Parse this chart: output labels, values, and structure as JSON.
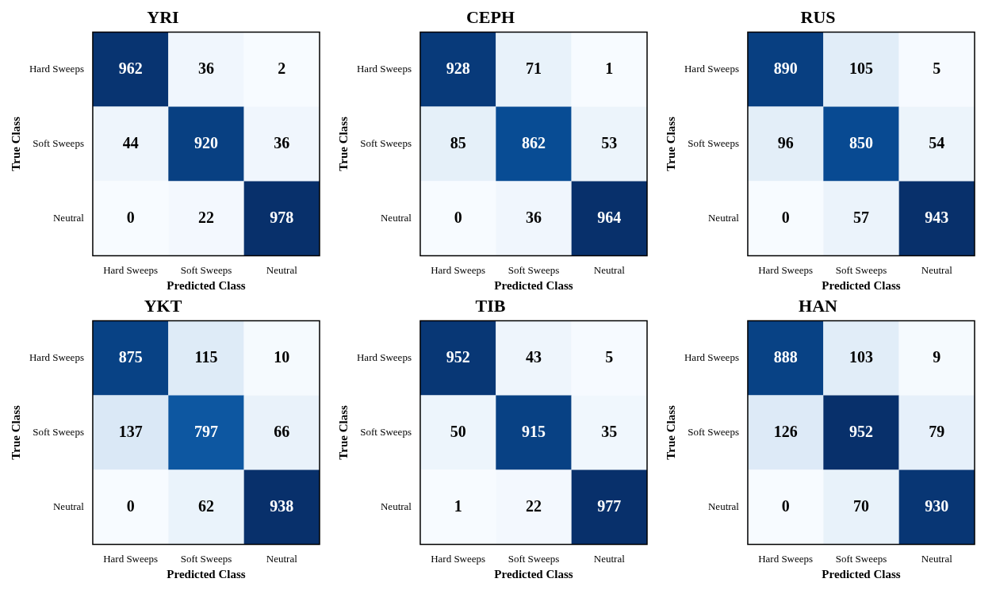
{
  "chart_data": [
    {
      "type": "heatmap",
      "title": "YRI",
      "xlabel": "Predicted Class",
      "ylabel": "True Class",
      "categories": [
        "Hard Sweeps",
        "Soft Sweeps",
        "Neutral"
      ],
      "y_categories": [
        "Hard Sweeps",
        "Soft Sweeps",
        "Neutral"
      ],
      "cells": [
        [
          962,
          36,
          2
        ],
        [
          44,
          920,
          36
        ],
        [
          0,
          22,
          978
        ]
      ],
      "data_labels": true
    },
    {
      "type": "heatmap",
      "title": "CEPH",
      "xlabel": "Predicted Class",
      "ylabel": "True Class",
      "categories": [
        "Hard Sweeps",
        "Soft Sweeps",
        "Neutral"
      ],
      "y_categories": [
        "Hard Sweeps",
        "Soft Sweeps",
        "Neutral"
      ],
      "cells": [
        [
          928,
          71,
          1
        ],
        [
          85,
          862,
          53
        ],
        [
          0,
          36,
          964
        ]
      ],
      "data_labels": true
    },
    {
      "type": "heatmap",
      "title": "RUS",
      "xlabel": "Predicted Class",
      "ylabel": "True Class",
      "categories": [
        "Hard Sweeps",
        "Soft Sweeps",
        "Neutral"
      ],
      "y_categories": [
        "Hard Sweeps",
        "Soft Sweeps",
        "Neutral"
      ],
      "cells": [
        [
          890,
          105,
          5
        ],
        [
          96,
          850,
          54
        ],
        [
          0,
          57,
          943
        ]
      ],
      "data_labels": true
    },
    {
      "type": "heatmap",
      "title": "YKT",
      "xlabel": "Predicted Class",
      "ylabel": "True Class",
      "categories": [
        "Hard Sweeps",
        "Soft Sweeps",
        "Neutral"
      ],
      "y_categories": [
        "Hard Sweeps",
        "Soft Sweeps",
        "Neutral"
      ],
      "cells": [
        [
          875,
          115,
          10
        ],
        [
          137,
          797,
          66
        ],
        [
          0,
          62,
          938
        ]
      ],
      "data_labels": true
    },
    {
      "type": "heatmap",
      "title": "TIB",
      "xlabel": "Predicted Class",
      "ylabel": "True Class",
      "categories": [
        "Hard Sweeps",
        "Soft Sweeps",
        "Neutral"
      ],
      "y_categories": [
        "Hard Sweeps",
        "Soft Sweeps",
        "Neutral"
      ],
      "cells": [
        [
          952,
          43,
          5
        ],
        [
          50,
          915,
          35
        ],
        [
          1,
          22,
          977
        ]
      ],
      "data_labels": true
    },
    {
      "type": "heatmap",
      "title": "HAN",
      "xlabel": "Predicted Class",
      "ylabel": "True Class",
      "categories": [
        "Hard Sweeps",
        "Soft Sweeps",
        "Neutral"
      ],
      "y_categories": [
        "Hard Sweeps",
        "Soft Sweeps",
        "Neutral"
      ],
      "cells": [
        [
          888,
          103,
          9
        ],
        [
          126,
          952,
          79
        ],
        [
          0,
          70,
          930
        ]
      ],
      "data_labels": true
    }
  ]
}
